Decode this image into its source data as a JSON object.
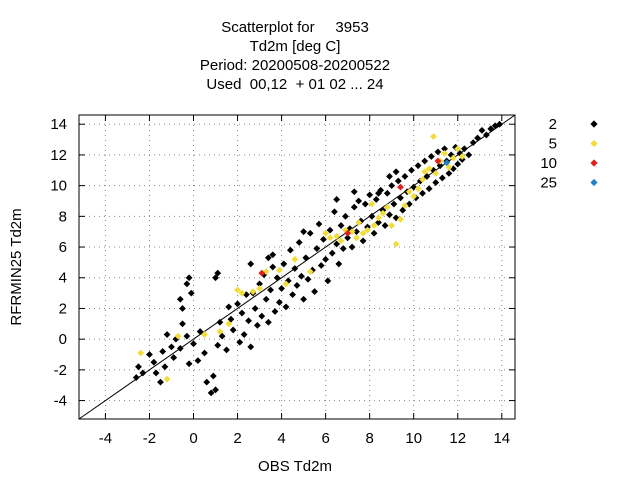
{
  "chart_data": {
    "type": "scatter",
    "title_lines": [
      "Scatterplot for     3953",
      "Td2m [deg C]",
      "Period: 20200508-20200522",
      "Used  00,12  + 01 02 ... 24"
    ],
    "xlabel": "OBS Td2m",
    "ylabel": "RFRMIN25 Td2m",
    "xlim": [
      -5.2,
      14.6
    ],
    "ylim": [
      -5.2,
      14.6
    ],
    "xticks": [
      -4,
      -2,
      0,
      2,
      4,
      6,
      8,
      10,
      12,
      14
    ],
    "yticks": [
      -4,
      -2,
      0,
      2,
      4,
      6,
      8,
      10,
      12,
      14
    ],
    "grid": true,
    "grid_style": "dotted",
    "diagonal_line": true,
    "legend_position": "right",
    "marker": "diamond",
    "series": [
      {
        "name": "2",
        "color": "#000000",
        "points": [
          [
            -2.6,
            -2.5
          ],
          [
            -2.5,
            -1.8
          ],
          [
            -2.3,
            -2.2
          ],
          [
            -2.0,
            -1.0
          ],
          [
            -1.8,
            -1.5
          ],
          [
            -1.7,
            -2.2
          ],
          [
            -1.5,
            -2.8
          ],
          [
            -1.4,
            -0.8
          ],
          [
            -1.3,
            -1.8
          ],
          [
            -1.2,
            0.3
          ],
          [
            -1.0,
            -0.5
          ],
          [
            -0.9,
            -1.2
          ],
          [
            -0.8,
            0.0
          ],
          [
            -0.6,
            -0.6
          ],
          [
            -0.5,
            1.0
          ],
          [
            -0.3,
            0.2
          ],
          [
            -0.2,
            -1.6
          ],
          [
            0.0,
            -0.3
          ],
          [
            0.2,
            -1.4
          ],
          [
            0.3,
            0.5
          ],
          [
            0.5,
            -0.9
          ],
          [
            0.6,
            -2.8
          ],
          [
            0.8,
            -3.5
          ],
          [
            0.9,
            -2.4
          ],
          [
            1.0,
            -3.3
          ],
          [
            1.1,
            -0.4
          ],
          [
            1.2,
            1.1
          ],
          [
            1.3,
            0.2
          ],
          [
            1.5,
            -0.7
          ],
          [
            1.6,
            2.1
          ],
          [
            1.7,
            1.3
          ],
          [
            1.8,
            0.6
          ],
          [
            2.0,
            2.3
          ],
          [
            2.1,
            -0.2
          ],
          [
            2.2,
            1.7
          ],
          [
            2.3,
            0.3
          ],
          [
            2.4,
            2.9
          ],
          [
            2.5,
            1.2
          ],
          [
            2.6,
            -0.5
          ],
          [
            2.7,
            3.0
          ],
          [
            2.8,
            2.0
          ],
          [
            2.9,
            0.9
          ],
          [
            3.0,
            3.6
          ],
          [
            3.1,
            1.5
          ],
          [
            3.2,
            4.2
          ],
          [
            3.3,
            2.6
          ],
          [
            3.4,
            1.1
          ],
          [
            3.5,
            3.2
          ],
          [
            3.6,
            5.5
          ],
          [
            3.7,
            1.8
          ],
          [
            3.8,
            4.0
          ],
          [
            3.9,
            2.4
          ],
          [
            4.0,
            3.3
          ],
          [
            4.1,
            4.9
          ],
          [
            4.2,
            2.1
          ],
          [
            4.3,
            3.8
          ],
          [
            4.4,
            5.8
          ],
          [
            4.5,
            2.9
          ],
          [
            4.6,
            4.6
          ],
          [
            4.7,
            3.5
          ],
          [
            4.8,
            6.3
          ],
          [
            4.9,
            4.1
          ],
          [
            5.0,
            2.6
          ],
          [
            5.1,
            5.3
          ],
          [
            5.2,
            3.9
          ],
          [
            5.3,
            6.9
          ],
          [
            5.4,
            4.5
          ],
          [
            5.5,
            3.1
          ],
          [
            5.6,
            5.9
          ],
          [
            5.7,
            7.5
          ],
          [
            5.8,
            4.8
          ],
          [
            5.9,
            6.5
          ],
          [
            6.0,
            5.2
          ],
          [
            6.1,
            3.8
          ],
          [
            6.2,
            7.1
          ],
          [
            6.3,
            5.6
          ],
          [
            6.4,
            8.3
          ],
          [
            6.5,
            6.2
          ],
          [
            6.6,
            4.9
          ],
          [
            6.7,
            7.4
          ],
          [
            6.8,
            5.9
          ],
          [
            6.9,
            8.0
          ],
          [
            7.0,
            6.6
          ],
          [
            7.1,
            7.2
          ],
          [
            7.2,
            6.0
          ],
          [
            7.3,
            8.6
          ],
          [
            7.4,
            7.0
          ],
          [
            7.5,
            9.0
          ],
          [
            7.6,
            7.7
          ],
          [
            7.7,
            6.4
          ],
          [
            7.8,
            8.8
          ],
          [
            7.9,
            7.3
          ],
          [
            8.0,
            9.4
          ],
          [
            8.1,
            8.0
          ],
          [
            8.2,
            6.9
          ],
          [
            8.3,
            9.1
          ],
          [
            8.4,
            7.6
          ],
          [
            8.5,
            9.7
          ],
          [
            8.6,
            8.4
          ],
          [
            8.7,
            7.4
          ],
          [
            8.8,
            9.5
          ],
          [
            8.9,
            8.1
          ],
          [
            9.0,
            10.0
          ],
          [
            9.1,
            8.8
          ],
          [
            9.2,
            7.9
          ],
          [
            9.3,
            10.3
          ],
          [
            9.4,
            9.2
          ],
          [
            9.5,
            8.4
          ],
          [
            9.6,
            10.6
          ],
          [
            9.7,
            9.6
          ],
          [
            9.8,
            8.8
          ],
          [
            9.9,
            11.0
          ],
          [
            10.0,
            9.9
          ],
          [
            10.1,
            9.2
          ],
          [
            10.2,
            11.3
          ],
          [
            10.3,
            10.3
          ],
          [
            10.4,
            9.5
          ],
          [
            10.5,
            11.6
          ],
          [
            10.6,
            10.6
          ],
          [
            10.7,
            9.8
          ],
          [
            10.8,
            11.9
          ],
          [
            10.9,
            11.0
          ],
          [
            11.0,
            10.2
          ],
          [
            11.1,
            12.2
          ],
          [
            11.2,
            11.3
          ],
          [
            11.3,
            10.5
          ],
          [
            11.4,
            12.4
          ],
          [
            11.5,
            11.6
          ],
          [
            11.6,
            10.8
          ],
          [
            11.7,
            12.0
          ],
          [
            11.8,
            11.1
          ],
          [
            11.9,
            12.5
          ],
          [
            12.0,
            11.4
          ],
          [
            12.1,
            12.1
          ],
          [
            12.2,
            11.7
          ],
          [
            12.3,
            12.4
          ],
          [
            12.5,
            12.0
          ],
          [
            12.7,
            12.8
          ],
          [
            12.9,
            13.1
          ],
          [
            13.1,
            13.6
          ],
          [
            13.3,
            13.3
          ],
          [
            13.5,
            13.7
          ],
          [
            13.7,
            13.9
          ],
          [
            13.9,
            14.0
          ],
          [
            -0.3,
            3.6
          ],
          [
            -0.2,
            4.0
          ],
          [
            -0.1,
            3.0
          ],
          [
            -0.6,
            2.6
          ],
          [
            -0.5,
            2.0
          ],
          [
            1.0,
            4.0
          ],
          [
            1.1,
            4.3
          ],
          [
            2.6,
            4.9
          ],
          [
            3.4,
            5.3
          ],
          [
            3.6,
            4.7
          ],
          [
            5.0,
            7.0
          ],
          [
            6.5,
            9.1
          ],
          [
            7.3,
            9.6
          ],
          [
            8.4,
            9.5
          ],
          [
            9.2,
            10.9
          ],
          [
            8.9,
            10.6
          ]
        ]
      },
      {
        "name": "5",
        "color": "#f0dc3c",
        "points": [
          [
            -2.4,
            -0.9
          ],
          [
            -1.2,
            -2.6
          ],
          [
            -0.7,
            0.2
          ],
          [
            0.5,
            0.3
          ],
          [
            1.2,
            0.5
          ],
          [
            1.6,
            1.0
          ],
          [
            2.0,
            3.2
          ],
          [
            2.2,
            3.0
          ],
          [
            2.7,
            3.1
          ],
          [
            3.0,
            3.3
          ],
          [
            3.3,
            4.4
          ],
          [
            3.9,
            4.5
          ],
          [
            4.2,
            3.6
          ],
          [
            4.6,
            5.2
          ],
          [
            5.3,
            4.4
          ],
          [
            6.0,
            6.9
          ],
          [
            6.5,
            6.7
          ],
          [
            6.7,
            6.4
          ],
          [
            6.9,
            7.1
          ],
          [
            7.2,
            7.0
          ],
          [
            7.4,
            6.6
          ],
          [
            7.5,
            7.6
          ],
          [
            7.7,
            6.9
          ],
          [
            7.9,
            7.1
          ],
          [
            8.2,
            7.4
          ],
          [
            8.4,
            7.9
          ],
          [
            8.6,
            8.2
          ],
          [
            8.8,
            8.6
          ],
          [
            9.0,
            7.4
          ],
          [
            9.2,
            6.2
          ],
          [
            9.4,
            7.8
          ],
          [
            9.6,
            8.7
          ],
          [
            9.8,
            9.6
          ],
          [
            10.0,
            9.3
          ],
          [
            10.2,
            9.8
          ],
          [
            10.4,
            10.4
          ],
          [
            10.5,
            10.9
          ],
          [
            10.7,
            11.1
          ],
          [
            10.9,
            13.2
          ],
          [
            11.0,
            10.8
          ],
          [
            11.2,
            11.6
          ],
          [
            11.4,
            12.1
          ],
          [
            11.6,
            11.2
          ],
          [
            11.8,
            11.8
          ],
          [
            12.0,
            12.4
          ],
          [
            12.2,
            11.9
          ],
          [
            8.1,
            8.8
          ],
          [
            6.2,
            6.6
          ]
        ]
      },
      {
        "name": "10",
        "color": "#e0201c",
        "points": [
          [
            3.1,
            4.3
          ],
          [
            7.0,
            6.9
          ],
          [
            9.4,
            9.9
          ],
          [
            11.1,
            11.6
          ]
        ]
      },
      {
        "name": "25",
        "color": "#2080c8",
        "points": [
          [
            11.5,
            11.5
          ]
        ]
      }
    ]
  }
}
